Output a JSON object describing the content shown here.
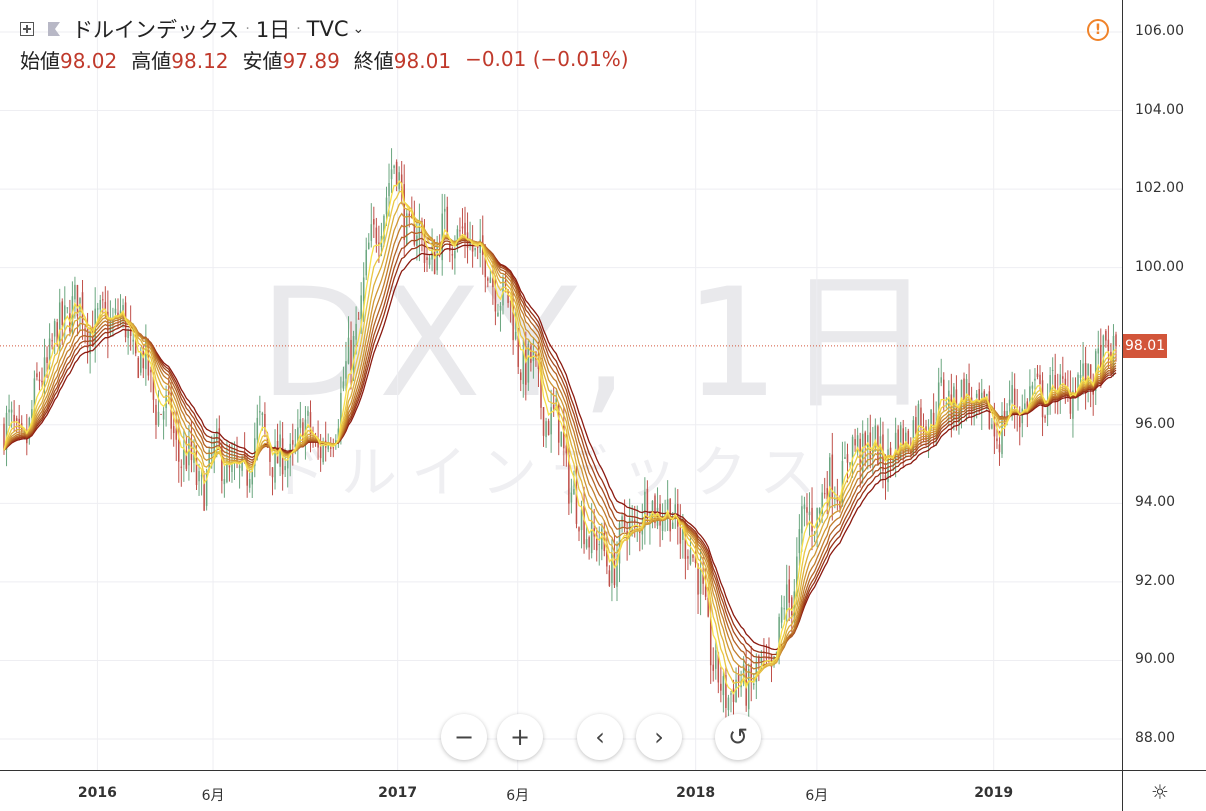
{
  "header": {
    "symbol_name": "ドルインデックス",
    "interval": "1日",
    "exchange": "TVC",
    "ohlc": [
      {
        "label": "始値",
        "value": "98.02"
      },
      {
        "label": "高値",
        "value": "98.12"
      },
      {
        "label": "安値",
        "value": "97.89"
      },
      {
        "label": "終値",
        "value": "98.01"
      }
    ],
    "change": "−0.01 (−0.01%)"
  },
  "watermark": {
    "big": "DXY, 1日",
    "small": "ドルインデックス"
  },
  "price_tag": "98.01",
  "colors": {
    "up": "#6aa67f",
    "down": "#c0504a",
    "price_line": "#d2553a",
    "alert": "#f0832a",
    "ribbon_slow": "#8b1a10",
    "ribbon_fast": "#f7e04a"
  },
  "chart_data": {
    "type": "candlestick",
    "y_ticks": [
      "106.00",
      "104.00",
      "102.00",
      "100.00",
      "98.01",
      "96.00",
      "94.00",
      "92.00",
      "90.00",
      "88.00"
    ],
    "ylim": [
      87.5,
      106.5
    ],
    "x_ticks": [
      {
        "label": "2016",
        "year": true,
        "t": 0.084
      },
      {
        "label": "6月",
        "year": false,
        "t": 0.188
      },
      {
        "label": "2017",
        "year": true,
        "t": 0.354
      },
      {
        "label": "6月",
        "year": false,
        "t": 0.462
      },
      {
        "label": "2018",
        "year": true,
        "t": 0.622
      },
      {
        "label": "6月",
        "year": false,
        "t": 0.731
      },
      {
        "label": "2019",
        "year": true,
        "t": 0.89
      }
    ],
    "last_price": 98.01,
    "price_anchors": [
      [
        0.0,
        95.9
      ],
      [
        0.02,
        95.6
      ],
      [
        0.035,
        97.5
      ],
      [
        0.06,
        99.0
      ],
      [
        0.085,
        98.5
      ],
      [
        0.1,
        98.8
      ],
      [
        0.12,
        97.8
      ],
      [
        0.14,
        96.5
      ],
      [
        0.16,
        95.3
      ],
      [
        0.175,
        94.5
      ],
      [
        0.195,
        95.2
      ],
      [
        0.21,
        94.5
      ],
      [
        0.23,
        95.8
      ],
      [
        0.25,
        95.0
      ],
      [
        0.27,
        95.8
      ],
      [
        0.29,
        95.4
      ],
      [
        0.31,
        97.5
      ],
      [
        0.33,
        100.5
      ],
      [
        0.35,
        102.5
      ],
      [
        0.365,
        101.0
      ],
      [
        0.385,
        100.3
      ],
      [
        0.4,
        101.0
      ],
      [
        0.42,
        100.6
      ],
      [
        0.445,
        99.5
      ],
      [
        0.47,
        97.5
      ],
      [
        0.495,
        96.0
      ],
      [
        0.52,
        93.5
      ],
      [
        0.545,
        92.5
      ],
      [
        0.565,
        93.5
      ],
      [
        0.585,
        94.0
      ],
      [
        0.605,
        93.5
      ],
      [
        0.625,
        92.2
      ],
      [
        0.64,
        89.5
      ],
      [
        0.655,
        89.2
      ],
      [
        0.67,
        89.5
      ],
      [
        0.69,
        89.8
      ],
      [
        0.705,
        91.5
      ],
      [
        0.72,
        93.5
      ],
      [
        0.745,
        94.5
      ],
      [
        0.77,
        95.5
      ],
      [
        0.795,
        95.2
      ],
      [
        0.82,
        96.0
      ],
      [
        0.85,
        96.7
      ],
      [
        0.87,
        96.6
      ],
      [
        0.89,
        95.9
      ],
      [
        0.91,
        96.5
      ],
      [
        0.935,
        96.8
      ],
      [
        0.96,
        96.9
      ],
      [
        0.98,
        97.3
      ],
      [
        1.0,
        98.01
      ]
    ],
    "ribbon_periods": [
      5,
      8,
      11,
      14,
      17,
      20,
      23,
      26,
      30
    ]
  },
  "controls": {
    "zoom_out": "−",
    "zoom_in": "+",
    "scroll_left": "‹",
    "scroll_right": "›",
    "reset": "↺"
  }
}
